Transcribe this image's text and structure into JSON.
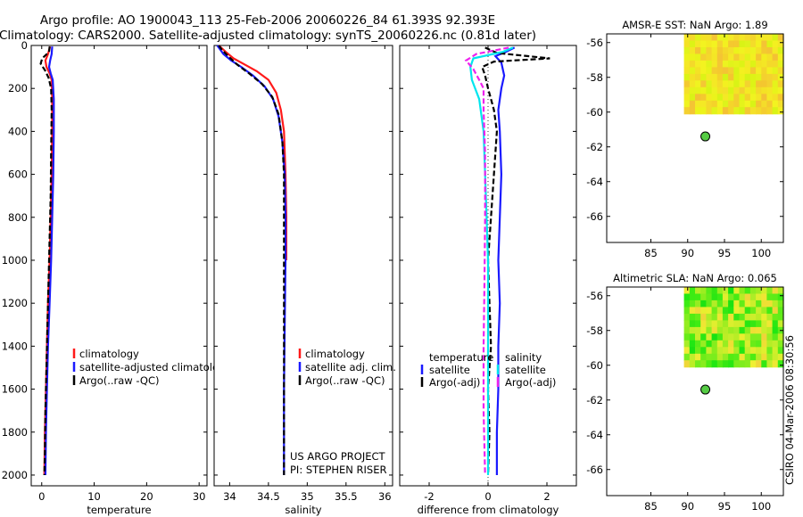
{
  "header": {
    "title_line1": "Argo profile: AO 1900043_113 25-Feb-2006 20060226_84 61.393S 92.393E",
    "title_line2": "Climatology: CARS2000. Satellite-adjusted climatology: synTS_20060226.nc (0.81d later)"
  },
  "side_label": "CSIRO 04-Mar-2006 08:30:56",
  "colors": {
    "red": "#ff1a1a",
    "blue": "#1a1aff",
    "black": "#000000",
    "cyan": "#00e5ee",
    "magenta": "#ee22ee",
    "marker": "#55cc44"
  },
  "chart_data": [
    {
      "id": "temperature",
      "type": "line",
      "xlabel": "temperature",
      "xlim": [
        -2,
        31.5
      ],
      "ylim": [
        0,
        2050
      ],
      "xticks": [
        0,
        10,
        20,
        30
      ],
      "yticks": [
        0,
        200,
        400,
        600,
        800,
        1000,
        1200,
        1400,
        1600,
        1800,
        2000
      ],
      "legend": [
        "climatology",
        "satellite-adjusted climatology",
        "Argo(..raw -QC)"
      ],
      "series": [
        {
          "name": "climatology",
          "color": "red",
          "dash": "",
          "points": [
            [
              1.6,
              5
            ],
            [
              1.2,
              40
            ],
            [
              0.7,
              70
            ],
            [
              0.9,
              100
            ],
            [
              1.5,
              130
            ],
            [
              1.9,
              160
            ],
            [
              2.0,
              250
            ],
            [
              2.0,
              400
            ],
            [
              1.9,
              600
            ],
            [
              1.7,
              800
            ],
            [
              1.5,
              1000
            ],
            [
              1.2,
              1200
            ],
            [
              1.0,
              1400
            ],
            [
              0.8,
              1600
            ],
            [
              0.6,
              1800
            ],
            [
              0.5,
              2000
            ]
          ]
        },
        {
          "name": "satellite-adjusted climatology",
          "color": "blue",
          "dash": "",
          "points": [
            [
              2.0,
              5
            ],
            [
              1.9,
              40
            ],
            [
              1.6,
              70
            ],
            [
              1.4,
              100
            ],
            [
              1.7,
              130
            ],
            [
              2.1,
              160
            ],
            [
              2.3,
              250
            ],
            [
              2.3,
              400
            ],
            [
              2.2,
              600
            ],
            [
              2.0,
              800
            ],
            [
              1.8,
              1000
            ],
            [
              1.5,
              1200
            ],
            [
              1.2,
              1400
            ],
            [
              1.0,
              1600
            ],
            [
              0.8,
              1800
            ],
            [
              0.7,
              2000
            ]
          ]
        },
        {
          "name": "Argo(..raw -QC)",
          "color": "black",
          "dash": "6,3",
          "points": [
            [
              1.5,
              5
            ],
            [
              1.4,
              30
            ],
            [
              0.1,
              60
            ],
            [
              -0.2,
              85
            ],
            [
              0.6,
              115
            ],
            [
              1.3,
              150
            ],
            [
              1.8,
              200
            ],
            [
              1.9,
              300
            ],
            [
              1.8,
              500
            ],
            [
              1.7,
              700
            ],
            [
              1.5,
              900
            ],
            [
              1.3,
              1100
            ],
            [
              1.1,
              1300
            ],
            [
              0.9,
              1500
            ],
            [
              0.7,
              1700
            ],
            [
              0.6,
              1900
            ],
            [
              0.5,
              2000
            ]
          ]
        }
      ]
    },
    {
      "id": "salinity",
      "type": "line",
      "xlabel": "salinity",
      "xlim": [
        33.8,
        36.1
      ],
      "ylim": [
        0,
        2050
      ],
      "xticks": [
        34,
        34.5,
        35,
        35.5,
        36
      ],
      "yticks": [
        0,
        200,
        400,
        600,
        800,
        1000,
        1200,
        1400,
        1600,
        1800,
        2000
      ],
      "legend": [
        "climatology",
        "satellite adj. clim.",
        "Argo(..raw -QC)"
      ],
      "annotation": [
        "US ARGO PROJECT",
        "PI: STEPHEN RISER"
      ],
      "series": [
        {
          "name": "climatology",
          "color": "red",
          "dash": "",
          "points": [
            [
              33.86,
              0
            ],
            [
              33.95,
              30
            ],
            [
              34.05,
              60
            ],
            [
              34.2,
              90
            ],
            [
              34.35,
              120
            ],
            [
              34.5,
              160
            ],
            [
              34.6,
              220
            ],
            [
              34.66,
              300
            ],
            [
              34.7,
              400
            ],
            [
              34.72,
              600
            ],
            [
              34.73,
              800
            ],
            [
              34.73,
              1000
            ]
          ]
        },
        {
          "name": "satellite adj. clim.",
          "color": "blue",
          "dash": "",
          "points": [
            [
              33.84,
              0
            ],
            [
              33.92,
              40
            ],
            [
              34.02,
              70
            ],
            [
              34.15,
              100
            ],
            [
              34.3,
              140
            ],
            [
              34.45,
              190
            ],
            [
              34.56,
              250
            ],
            [
              34.63,
              330
            ],
            [
              34.68,
              450
            ],
            [
              34.71,
              600
            ],
            [
              34.72,
              800
            ],
            [
              34.72,
              1000
            ],
            [
              34.71,
              1300
            ],
            [
              34.7,
              1600
            ],
            [
              34.7,
              2000
            ]
          ]
        },
        {
          "name": "Argo(..raw -QC)",
          "color": "black",
          "dash": "6,3",
          "points": [
            [
              33.86,
              0
            ],
            [
              33.9,
              20
            ],
            [
              33.98,
              50
            ],
            [
              34.1,
              90
            ],
            [
              34.25,
              130
            ],
            [
              34.42,
              180
            ],
            [
              34.55,
              240
            ],
            [
              34.63,
              320
            ],
            [
              34.68,
              450
            ],
            [
              34.7,
              600
            ],
            [
              34.7,
              800
            ],
            [
              34.7,
              1100
            ],
            [
              34.7,
              1400
            ],
            [
              34.7,
              1700
            ],
            [
              34.7,
              2000
            ]
          ]
        }
      ]
    },
    {
      "id": "difference",
      "type": "line",
      "xlabel": "difference from climatology",
      "xlim": [
        -3,
        3
      ],
      "ylim": [
        0,
        2050
      ],
      "xticks": [
        -2,
        0,
        2
      ],
      "yticks": [
        0,
        200,
        400,
        600,
        800,
        1000,
        1200,
        1400,
        1600,
        1800,
        2000
      ],
      "legend_left_title": "temperature",
      "legend_left": [
        "satellite",
        "Argo(-adj)"
      ],
      "legend_right_title": "salinity",
      "legend_right": [
        "satellite",
        "Argo(-adj)"
      ],
      "series": [
        {
          "name": "temperature satellite",
          "color": "blue",
          "dash": "",
          "points": [
            [
              0.9,
              10
            ],
            [
              0.6,
              30
            ],
            [
              0.25,
              50
            ],
            [
              0.45,
              80
            ],
            [
              0.55,
              140
            ],
            [
              0.45,
              200
            ],
            [
              0.35,
              300
            ],
            [
              0.4,
              400
            ],
            [
              0.45,
              600
            ],
            [
              0.4,
              800
            ],
            [
              0.35,
              1000
            ],
            [
              0.4,
              1200
            ],
            [
              0.35,
              1400
            ],
            [
              0.35,
              1600
            ],
            [
              0.3,
              1800
            ],
            [
              0.3,
              2000
            ]
          ]
        },
        {
          "name": "temperature Argo(-adj)",
          "color": "black",
          "dash": "6,3",
          "points": [
            [
              -0.1,
              10
            ],
            [
              0.3,
              35
            ],
            [
              2.1,
              60
            ],
            [
              0.2,
              75
            ],
            [
              -0.2,
              100
            ],
            [
              -0.1,
              140
            ],
            [
              0.0,
              200
            ],
            [
              0.2,
              300
            ],
            [
              0.3,
              400
            ],
            [
              0.2,
              600
            ],
            [
              0.1,
              800
            ],
            [
              0.0,
              1000
            ],
            [
              0.05,
              1200
            ],
            [
              0.1,
              1400
            ],
            [
              0.0,
              1600
            ],
            [
              0.05,
              1800
            ],
            [
              0.0,
              2000
            ]
          ]
        },
        {
          "name": "salinity satellite",
          "color": "cyan",
          "dash": "",
          "points": [
            [
              0.85,
              10
            ],
            [
              0.5,
              30
            ],
            [
              -0.5,
              60
            ],
            [
              -0.6,
              100
            ],
            [
              -0.55,
              160
            ],
            [
              -0.3,
              250
            ],
            [
              -0.15,
              400
            ],
            [
              -0.1,
              600
            ],
            [
              -0.05,
              800
            ],
            [
              0.0,
              1000
            ],
            [
              0.0,
              2000
            ]
          ]
        },
        {
          "name": "salinity Argo(-adj)",
          "color": "magenta",
          "dash": "6,3",
          "points": [
            [
              0.7,
              10
            ],
            [
              -0.4,
              40
            ],
            [
              -0.75,
              70
            ],
            [
              -0.5,
              110
            ],
            [
              -0.3,
              160
            ],
            [
              -0.15,
              200
            ],
            [
              -0.15,
              300
            ],
            [
              -0.1,
              500
            ],
            [
              -0.1,
              800
            ],
            [
              -0.12,
              1100
            ],
            [
              -0.15,
              1400
            ],
            [
              -0.15,
              1700
            ],
            [
              -0.1,
              2000
            ]
          ]
        }
      ]
    },
    {
      "id": "sst_map",
      "type": "heatmap",
      "title": "AMSR-E SST: NaN Argo: 1.89",
      "xlim": [
        79,
        103
      ],
      "ylim": [
        -67.5,
        -55.5
      ],
      "xticks": [
        85,
        90,
        95,
        100
      ],
      "yticks": [
        -56,
        -58,
        -60,
        -62,
        -64,
        -66
      ],
      "field_extent": {
        "lon": [
          89.5,
          103
        ],
        "lat": [
          -60.1,
          -55.5
        ]
      },
      "marker": {
        "lon": 92.4,
        "lat": -61.4
      }
    },
    {
      "id": "sla_map",
      "type": "heatmap",
      "title": "Altimetric SLA: NaN Argo: 0.065",
      "xlim": [
        79,
        103
      ],
      "ylim": [
        -67.5,
        -55.5
      ],
      "xticks": [
        85,
        90,
        95,
        100
      ],
      "yticks": [
        -56,
        -58,
        -60,
        -62,
        -64,
        -66
      ],
      "field_extent": {
        "lon": [
          89.5,
          103
        ],
        "lat": [
          -60.1,
          -55.5
        ]
      },
      "marker": {
        "lon": 92.4,
        "lat": -61.4
      }
    }
  ]
}
